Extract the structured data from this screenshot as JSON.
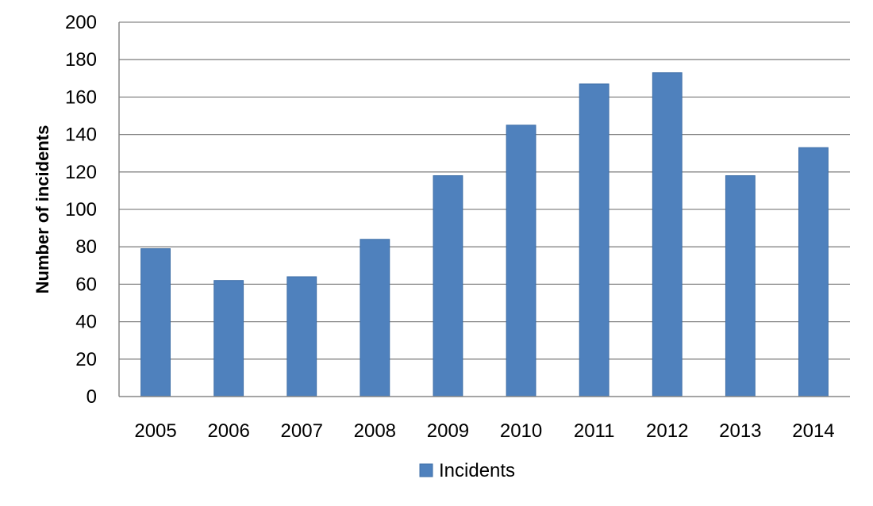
{
  "chart_data": {
    "type": "bar",
    "title": "",
    "xlabel": "",
    "ylabel": "Number of incidents",
    "categories": [
      "2005",
      "2006",
      "2007",
      "2008",
      "2009",
      "2010",
      "2011",
      "2012",
      "2013",
      "2014"
    ],
    "series": [
      {
        "name": "Incidents",
        "values": [
          79,
          62,
          64,
          84,
          118,
          145,
          167,
          173,
          118,
          133
        ],
        "color": "#4F81BD"
      }
    ],
    "ylim": [
      0,
      200
    ],
    "yticks": [
      0,
      20,
      40,
      60,
      80,
      100,
      120,
      140,
      160,
      180,
      200
    ],
    "grid": true,
    "legend": "bottom"
  }
}
